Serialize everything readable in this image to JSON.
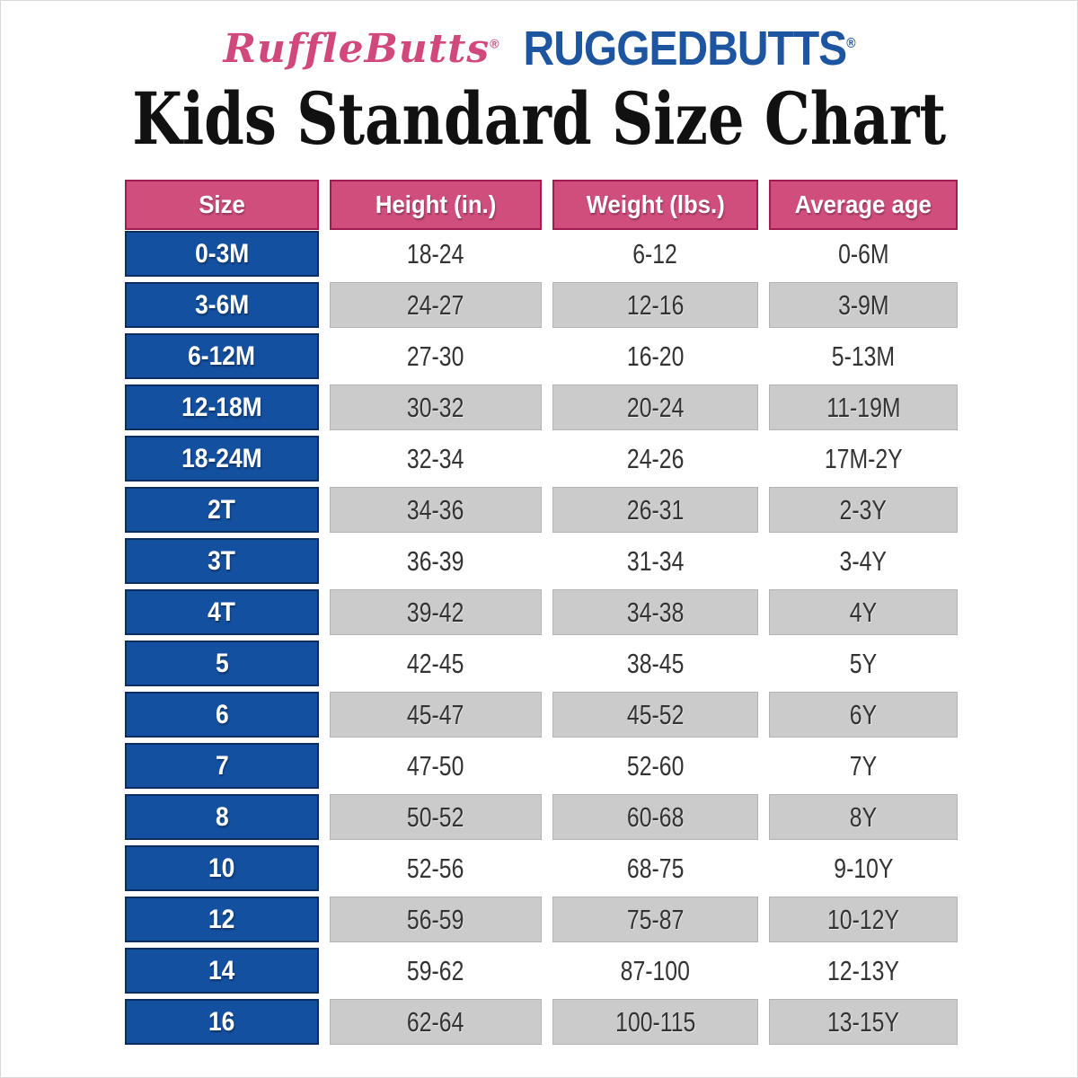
{
  "logos": {
    "rufflebutts": "RuffleButts",
    "ruggedbutts": "RUGGEDBUTTS",
    "registered_mark": "®"
  },
  "title": "Kids Standard Size Chart",
  "colors": {
    "header_pink": "#d04e7c",
    "header_pink_border": "#a01c52",
    "size_blue": "#1450a0",
    "size_blue_border": "#0b2d5f",
    "row_gray": "#cbcbcb",
    "row_gray_border": "#b3b3b3",
    "data_text": "#333333",
    "logo_pink": "#d0487c",
    "logo_blue": "#1d55a0",
    "title_black": "#111111"
  },
  "chart_data": {
    "type": "table",
    "title": "Kids Standard Size Chart",
    "columns": [
      "Size",
      "Height (in.)",
      "Weight (lbs.)",
      "Average age"
    ],
    "rows": [
      [
        "0-3M",
        "18-24",
        "6-12",
        "0-6M"
      ],
      [
        "3-6M",
        "24-27",
        "12-16",
        "3-9M"
      ],
      [
        "6-12M",
        "27-30",
        "16-20",
        "5-13M"
      ],
      [
        "12-18M",
        "30-32",
        "20-24",
        "11-19M"
      ],
      [
        "18-24M",
        "32-34",
        "24-26",
        "17M-2Y"
      ],
      [
        "2T",
        "34-36",
        "26-31",
        "2-3Y"
      ],
      [
        "3T",
        "36-39",
        "31-34",
        "3-4Y"
      ],
      [
        "4T",
        "39-42",
        "34-38",
        "4Y"
      ],
      [
        "5",
        "42-45",
        "38-45",
        "5Y"
      ],
      [
        "6",
        "45-47",
        "45-52",
        "6Y"
      ],
      [
        "7",
        "47-50",
        "52-60",
        "7Y"
      ],
      [
        "8",
        "50-52",
        "60-68",
        "8Y"
      ],
      [
        "10",
        "52-56",
        "68-75",
        "9-10Y"
      ],
      [
        "12",
        "56-59",
        "75-87",
        "10-12Y"
      ],
      [
        "14",
        "59-62",
        "87-100",
        "12-13Y"
      ],
      [
        "16",
        "62-64",
        "100-115",
        "13-15Y"
      ]
    ]
  }
}
